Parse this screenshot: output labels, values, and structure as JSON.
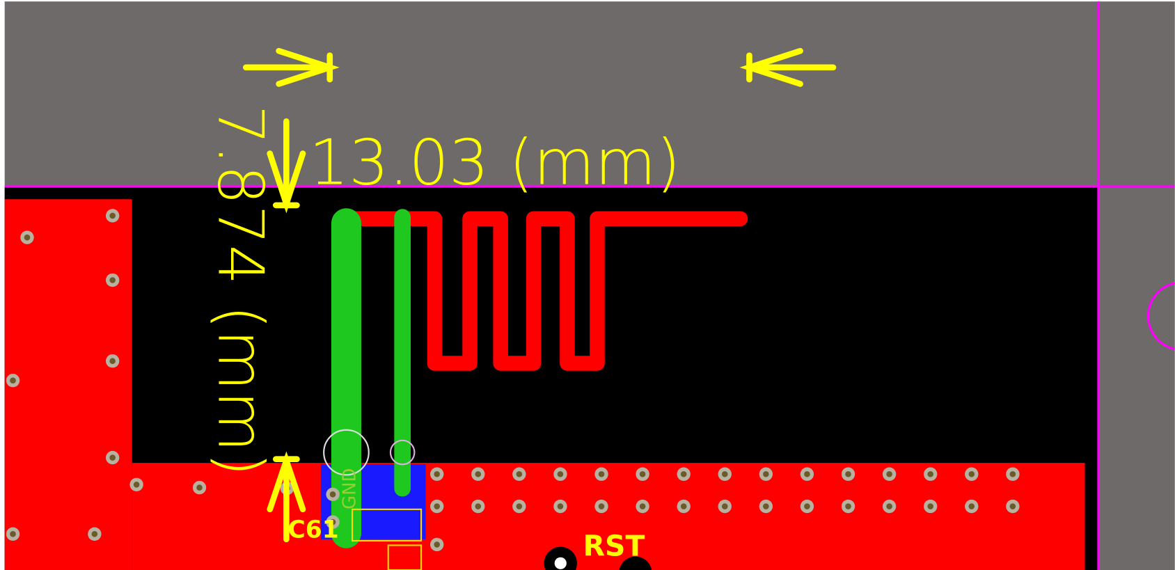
{
  "dimensions": {
    "horizontal": "13.03 (mm)",
    "vertical": "7.874 (mm)"
  },
  "labels": {
    "gnd": "GND",
    "capacitor": "C61",
    "reset": "RST"
  }
}
